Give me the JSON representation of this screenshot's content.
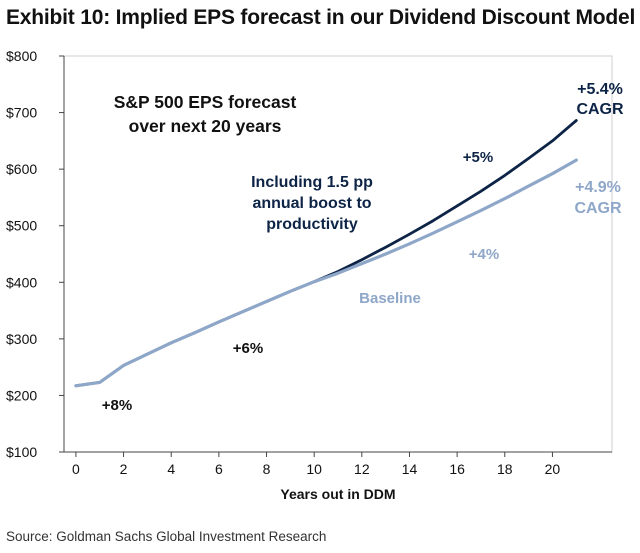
{
  "header": {
    "title": "Exhibit 10: Implied EPS forecast in our Dividend Discount Model"
  },
  "footer": {
    "source": "Source: Goldman Sachs Global Investment Research"
  },
  "colors": {
    "productivity_line": "#0d2446",
    "baseline_line": "#8ea7c9",
    "axis": "#444444",
    "text": "#111111"
  },
  "chart_data": {
    "type": "line",
    "title": "S&P 500 EPS forecast over next 20 years",
    "title_lines": [
      "S&P 500 EPS forecast",
      "over next 20 years"
    ],
    "xlabel": "Years out in DDM",
    "ylabel": "",
    "xlim": [
      -0.5,
      22.5
    ],
    "ylim": [
      100,
      800
    ],
    "xticks": [
      0,
      2,
      4,
      6,
      8,
      10,
      12,
      14,
      16,
      18,
      20
    ],
    "xtick_labels": [
      "0",
      "2",
      "4",
      "6",
      "8",
      "10",
      "12",
      "14",
      "16",
      "18",
      "20"
    ],
    "yticks": [
      100,
      200,
      300,
      400,
      500,
      600,
      700,
      800
    ],
    "ytick_labels": [
      "$100",
      "$200",
      "$300",
      "$400",
      "$500",
      "$600",
      "$700",
      "$800"
    ],
    "grid": false,
    "series": [
      {
        "name": "Including 1.5 pp annual boost to productivity",
        "color": "#0d2446",
        "x": [
          0,
          1,
          2,
          3,
          4,
          5,
          6,
          7,
          8,
          9,
          10,
          11,
          12,
          13,
          14,
          15,
          16,
          17,
          18,
          19,
          20,
          21
        ],
        "values": [
          217,
          223,
          253,
          273,
          293,
          311,
          330,
          348,
          366,
          384,
          401,
          419,
          440,
          462,
          485,
          509,
          535,
          561,
          589,
          619,
          650,
          686
        ]
      },
      {
        "name": "Baseline",
        "color": "#8ea7c9",
        "x": [
          0,
          1,
          2,
          3,
          4,
          5,
          6,
          7,
          8,
          9,
          10,
          11,
          12,
          13,
          14,
          15,
          16,
          17,
          18,
          19,
          20,
          21
        ],
        "values": [
          217,
          223,
          253,
          273,
          293,
          311,
          330,
          348,
          366,
          384,
          401,
          416,
          433,
          450,
          468,
          487,
          507,
          527,
          548,
          570,
          592,
          616
        ]
      }
    ],
    "annotations": {
      "productivity_label_lines": [
        "Including 1.5 pp",
        "annual boost to",
        "productivity"
      ],
      "baseline_label": "Baseline",
      "growth_8": "+8%",
      "growth_6": "+6%",
      "growth_5": "+5%",
      "growth_4": "+4%",
      "cagr_productivity": "+5.4%",
      "cagr_baseline": "+4.9%",
      "cagr_word": "CAGR"
    }
  }
}
